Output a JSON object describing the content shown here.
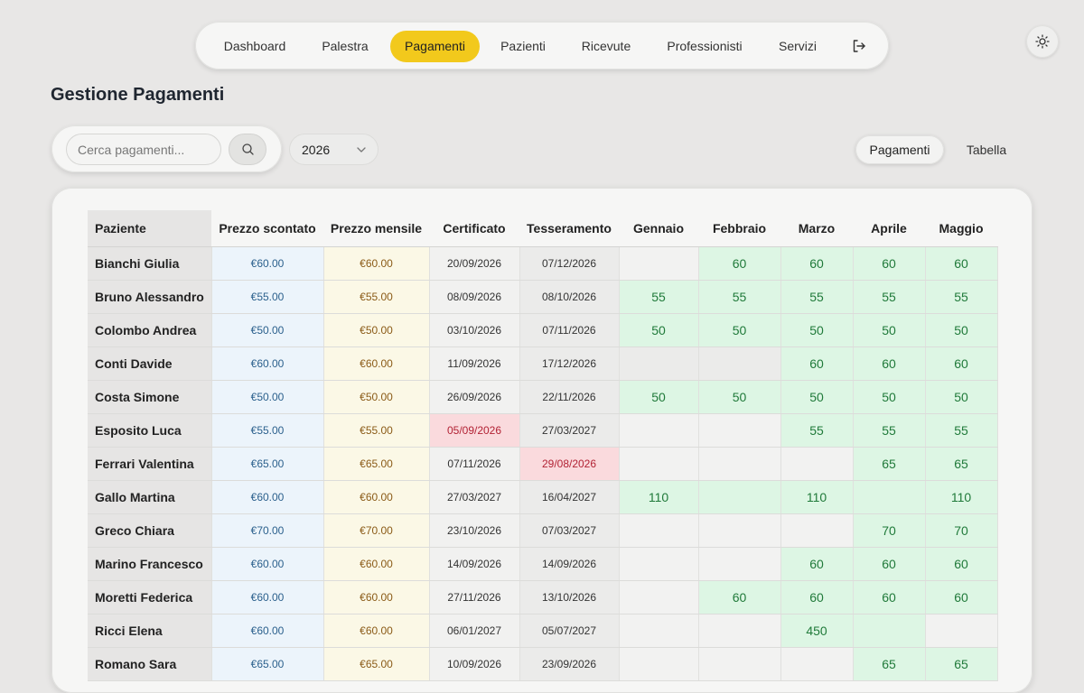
{
  "nav": {
    "items": [
      "Dashboard",
      "Palestra",
      "Pagamenti",
      "Pazienti",
      "Ricevute",
      "Professionisti",
      "Servizi"
    ],
    "active": "Pagamenti"
  },
  "page": {
    "title": "Gestione Pagamenti"
  },
  "search": {
    "placeholder": "Cerca pagamenti..."
  },
  "year": {
    "selected": "2026"
  },
  "view_toggle": {
    "pagamenti": "Pagamenti",
    "tabella": "Tabella",
    "active": "Pagamenti"
  },
  "colors": {
    "accent": "#f2c91c",
    "paid": "#ddf6e4",
    "overdue": "#fadadd"
  },
  "table": {
    "headers": [
      "Paziente",
      "Prezzo scontato",
      "Prezzo mensile",
      "Certificato",
      "Tesseramento",
      "Gennaio",
      "Febbraio",
      "Marzo",
      "Aprile",
      "Maggio"
    ],
    "rows": [
      {
        "name": "Bianchi Giulia",
        "sconto": "€60.00",
        "mensile": "€60.00",
        "cert": "20/09/2026",
        "tess": "07/12/2026",
        "months": [
          "",
          "60",
          "60",
          "60",
          "60"
        ]
      },
      {
        "name": "Bruno Alessandro",
        "sconto": "€55.00",
        "mensile": "€55.00",
        "cert": "08/09/2026",
        "tess": "08/10/2026",
        "months": [
          "55",
          "55",
          "55",
          "55",
          "55"
        ]
      },
      {
        "name": "Colombo Andrea",
        "sconto": "€50.00",
        "mensile": "€50.00",
        "cert": "03/10/2026",
        "tess": "07/11/2026",
        "months": [
          "50",
          "50",
          "50",
          "50",
          "50"
        ]
      },
      {
        "name": "Conti Davide",
        "sconto": "€60.00",
        "mensile": "€60.00",
        "cert": "11/09/2026",
        "tess": "17/12/2026",
        "months": [
          "",
          "",
          "60",
          "60",
          "60"
        ]
      },
      {
        "name": "Costa Simone",
        "sconto": "€50.00",
        "mensile": "€50.00",
        "cert": "26/09/2026",
        "tess": "22/11/2026",
        "months": [
          "50",
          "50",
          "50",
          "50",
          "50"
        ]
      },
      {
        "name": "Esposito Luca",
        "sconto": "€55.00",
        "mensile": "€55.00",
        "cert": "05/09/2026",
        "tess": "27/03/2027",
        "months": [
          "",
          "",
          "55",
          "55",
          "55"
        ]
      },
      {
        "name": "Ferrari Valentina",
        "sconto": "€65.00",
        "mensile": "€65.00",
        "cert": "07/11/2026",
        "tess": "29/08/2026",
        "months": [
          "",
          "",
          "",
          "65",
          "65"
        ]
      },
      {
        "name": "Gallo Martina",
        "sconto": "€60.00",
        "mensile": "€60.00",
        "cert": "27/03/2027",
        "tess": "16/04/2027",
        "months": [
          "110",
          "",
          "110",
          "",
          "110"
        ]
      },
      {
        "name": "Greco Chiara",
        "sconto": "€70.00",
        "mensile": "€70.00",
        "cert": "23/10/2026",
        "tess": "07/03/2027",
        "months": [
          "",
          "",
          "",
          "70",
          "70"
        ]
      },
      {
        "name": "Marino Francesco",
        "sconto": "€60.00",
        "mensile": "€60.00",
        "cert": "14/09/2026",
        "tess": "14/09/2026",
        "months": [
          "",
          "",
          "60",
          "60",
          "60"
        ]
      },
      {
        "name": "Moretti Federica",
        "sconto": "€60.00",
        "mensile": "€60.00",
        "cert": "27/11/2026",
        "tess": "13/10/2026",
        "months": [
          "",
          "60",
          "60",
          "60",
          "60"
        ]
      },
      {
        "name": "Ricci Elena",
        "sconto": "€60.00",
        "mensile": "€60.00",
        "cert": "06/01/2027",
        "tess": "05/07/2027",
        "months": [
          "",
          "",
          "450",
          "",
          ""
        ]
      },
      {
        "name": "Romano Sara",
        "sconto": "€65.00",
        "mensile": "€65.00",
        "cert": "10/09/2026",
        "tess": "23/09/2026",
        "months": [
          "",
          "",
          "",
          "65",
          "65"
        ]
      }
    ],
    "expired_cert_rows": [
      5
    ],
    "expired_tess_rows": [
      6
    ],
    "paid_months": [
      [
        false,
        true,
        true,
        true,
        true
      ],
      [
        true,
        true,
        true,
        true,
        true
      ],
      [
        true,
        true,
        true,
        true,
        true
      ],
      [
        false,
        false,
        true,
        true,
        true
      ],
      [
        true,
        true,
        true,
        true,
        true
      ],
      [
        false,
        false,
        true,
        true,
        true
      ],
      [
        false,
        false,
        false,
        true,
        true
      ],
      [
        true,
        true,
        true,
        true,
        true
      ],
      [
        false,
        false,
        false,
        true,
        true
      ],
      [
        false,
        false,
        true,
        true,
        true
      ],
      [
        false,
        true,
        true,
        true,
        true
      ],
      [
        false,
        false,
        true,
        true,
        false
      ],
      [
        false,
        false,
        false,
        true,
        true
      ]
    ]
  }
}
